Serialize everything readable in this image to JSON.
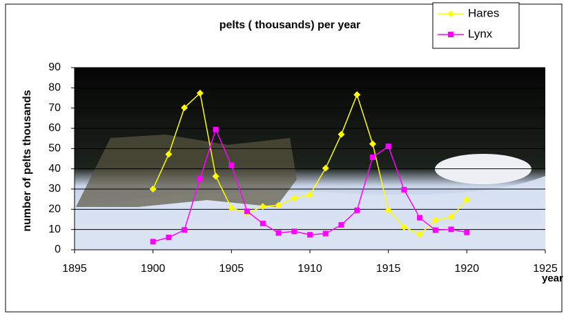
{
  "chart_data": {
    "type": "line",
    "title": "pelts ( thousands) per year",
    "x_label": "year",
    "y_label": "number of pelts thousands",
    "x": [
      1900,
      1901,
      1902,
      1903,
      1904,
      1905,
      1906,
      1907,
      1908,
      1909,
      1910,
      1911,
      1912,
      1913,
      1914,
      1915,
      1916,
      1917,
      1918,
      1919,
      1920
    ],
    "series": [
      {
        "name": "Hares",
        "color": "#ffff00",
        "marker": "diamond",
        "values": [
          30,
          47.2,
          70.2,
          77.4,
          36.3,
          20.6,
          18.1,
          21.4,
          22,
          25.4,
          27.1,
          40.3,
          57,
          76.6,
          52.3,
          19.5,
          11.2,
          7.6,
          14.6,
          16.2,
          24.7
        ]
      },
      {
        "name": "Lynx",
        "color": "#ff00ff",
        "marker": "square",
        "values": [
          4,
          6.1,
          9.8,
          35.2,
          59.4,
          41.7,
          19,
          13,
          8.3,
          9.1,
          7.4,
          8,
          12.3,
          19.5,
          45.7,
          51.1,
          29.7,
          15.8,
          9.7,
          10.1,
          8.6
        ]
      }
    ],
    "xlim": [
      1895,
      1925
    ],
    "xticks": [
      1895,
      1900,
      1905,
      1910,
      1915,
      1920,
      1925
    ],
    "ylim": [
      0,
      90
    ],
    "yticks": [
      0,
      10,
      20,
      30,
      40,
      50,
      60,
      70,
      80,
      90
    ],
    "grid": true,
    "legend": "top-right"
  }
}
